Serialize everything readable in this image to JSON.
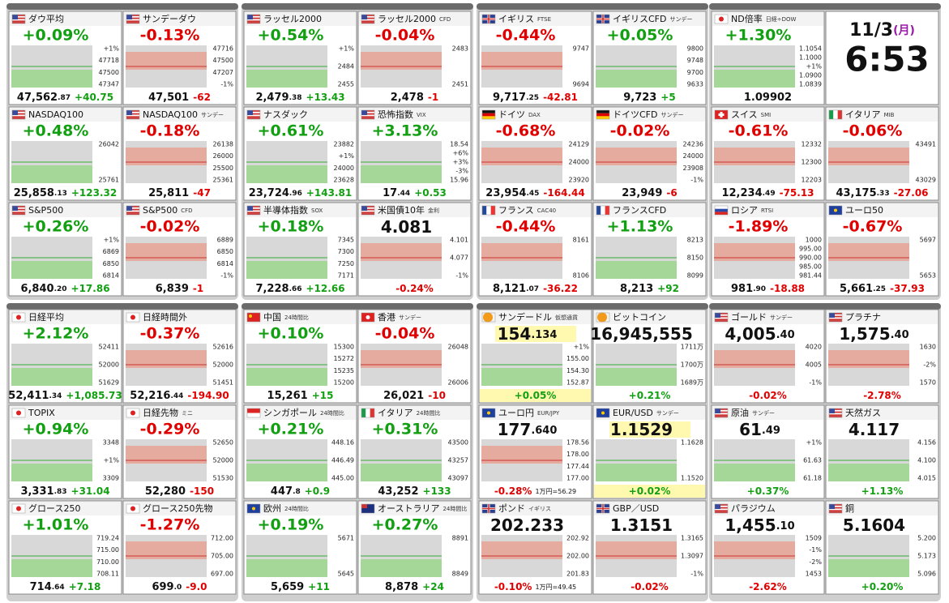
{
  "clock": {
    "date": "11/3",
    "weekday": "(月)",
    "time": "6:53"
  },
  "tiles": [
    {
      "name": "ダウ平均",
      "change": "+0.09%",
      "price": "47,562",
      "price_dec": ".87",
      "delta": "+40.75",
      "axis": [
        "+1%",
        "47718",
        "47500",
        "47347"
      ]
    },
    {
      "name": "サンデーダウ",
      "change": "-0.13%",
      "price": "47,501",
      "delta": "-62",
      "axis": [
        "47716",
        "47500",
        "47207",
        "-1%"
      ]
    },
    {
      "name": "NASDAQ100",
      "change": "+0.48%",
      "price": "25,858",
      "price_dec": ".13",
      "delta": "+123.32",
      "axis": [
        "26042",
        "25761"
      ]
    },
    {
      "name": "NASDAQ100",
      "tag": "サンデー",
      "change": "-0.18%",
      "price": "25,811",
      "delta": "-47",
      "axis": [
        "26138",
        "26000",
        "25500",
        "25361"
      ]
    },
    {
      "name": "S&P500",
      "change": "+0.26%",
      "price": "6,840",
      "price_dec": ".20",
      "delta": "+17.86",
      "axis": [
        "+1%",
        "6869",
        "6850",
        "6814"
      ]
    },
    {
      "name": "S&P500",
      "tag": "CFD",
      "change": "-0.02%",
      "price": "6,839",
      "delta": "-1",
      "axis": [
        "6889",
        "6850",
        "6814",
        "-1%"
      ]
    },
    {
      "name": "ラッセル2000",
      "change": "+0.54%",
      "price": "2,479",
      "price_dec": ".38",
      "delta": "+13.43",
      "axis": [
        "+1%",
        "2484",
        "2455"
      ]
    },
    {
      "name": "ラッセル2000",
      "tag": "CFD",
      "change": "-0.04%",
      "price": "2,478",
      "delta": "-1",
      "axis": [
        "2483",
        "2451"
      ]
    },
    {
      "name": "ナスダック",
      "change": "+0.61%",
      "price": "23,724",
      "price_dec": ".96",
      "delta": "+143.81",
      "axis": [
        "23882",
        "+1%",
        "24000",
        "23628"
      ]
    },
    {
      "name": "恐怖指数",
      "tag": "VIX",
      "change": "+3.13%",
      "price": "17",
      "price_dec": ".44",
      "delta": "+0.53",
      "axis": [
        "18.54",
        "+6%",
        "+3%",
        "-3%",
        "15.96"
      ]
    },
    {
      "name": "半導体指数",
      "tag": "SOX",
      "change": "+0.18%",
      "price": "7,228",
      "price_dec": ".66",
      "delta": "+12.66",
      "axis": [
        "7345",
        "7300",
        "7250",
        "7171"
      ]
    },
    {
      "name": "米国債10年",
      "tag": "金利",
      "price": "4.081",
      "change": "-0.24%",
      "axis": [
        "4.101",
        "4.077",
        "-1%"
      ]
    },
    {
      "name": "イギリス",
      "tag": "FTSE",
      "change": "-0.44%",
      "price": "9,717",
      "price_dec": ".25",
      "delta": "-42.81",
      "axis": [
        "9747",
        "9694"
      ]
    },
    {
      "name": "イギリスCFD",
      "tag": "サンデー",
      "change": "+0.05%",
      "price": "9,723",
      "delta": "+5",
      "axis": [
        "9800",
        "9748",
        "9700",
        "9633"
      ]
    },
    {
      "name": "ドイツ",
      "tag": "DAX",
      "change": "-0.68%",
      "price": "23,954",
      "price_dec": ".45",
      "delta": "-164.44",
      "axis": [
        "24129",
        "24000",
        "23920"
      ]
    },
    {
      "name": "ドイツCFD",
      "tag": "サンデー",
      "change": "-0.02%",
      "price": "23,949",
      "delta": "-6",
      "axis": [
        "24236",
        "24000",
        "23908",
        "-1%"
      ]
    },
    {
      "name": "フランス",
      "tag": "CAC40",
      "change": "-0.44%",
      "price": "8,121",
      "price_dec": ".07",
      "delta": "-36.22",
      "axis": [
        "8161",
        "8106"
      ]
    },
    {
      "name": "フランスCFD",
      "change": "+1.13%",
      "price": "8,213",
      "delta": "+92",
      "axis": [
        "8213",
        "8150",
        "8099"
      ]
    },
    {
      "name": "ND倍率",
      "tag": "日経÷DOW",
      "change": "+1.30%",
      "price": "1.09902",
      "axis": [
        "1.1054",
        "1.1000",
        "+1%",
        "1.0900",
        "1.0839"
      ]
    },
    {
      "name": "スイス",
      "tag": "SMI",
      "change": "-0.61%",
      "price": "12,234",
      "price_dec": ".49",
      "delta": "-75.13",
      "axis": [
        "12332",
        "12300",
        "12203"
      ]
    },
    {
      "name": "イタリア",
      "tag": "MIB",
      "change": "-0.06%",
      "price": "43,175",
      "price_dec": ".33",
      "delta": "-27.06",
      "axis": [
        "43491",
        "43029"
      ]
    },
    {
      "name": "ロシア",
      "tag": "RTSI",
      "change": "-1.89%",
      "price": "981",
      "price_dec": ".90",
      "delta": "-18.88",
      "axis": [
        "1000",
        "995.00",
        "990.00",
        "985.00",
        "981.44"
      ]
    },
    {
      "name": "ユーロ50",
      "change": "-0.67%",
      "price": "5,661",
      "price_dec": ".25",
      "delta": "-37.93",
      "axis": [
        "5697",
        "5653"
      ]
    },
    {
      "name": "日経平均",
      "change": "+2.12%",
      "price": "52,411",
      "price_dec": ".34",
      "delta": "+1,085.73",
      "axis": [
        "52411",
        "52000",
        "51629"
      ]
    },
    {
      "name": "日経時間外",
      "change": "-0.37%",
      "price": "52,216",
      "price_dec": ".44",
      "delta": "-194.90",
      "axis": [
        "52616",
        "52000",
        "51451"
      ]
    },
    {
      "name": "TOPIX",
      "change": "+0.94%",
      "price": "3,331",
      "price_dec": ".83",
      "delta": "+31.04",
      "axis": [
        "3348",
        "+1%",
        "3309"
      ]
    },
    {
      "name": "日経先物",
      "tag": "ミニ",
      "change": "-0.29%",
      "price": "52,280",
      "delta": "-150",
      "axis": [
        "52650",
        "52000",
        "51530"
      ]
    },
    {
      "name": "グロース250",
      "change": "+1.01%",
      "price": "714",
      "price_dec": ".64",
      "delta": "+7.18",
      "axis": [
        "719.24",
        "715.00",
        "710.00",
        "708.11"
      ]
    },
    {
      "name": "グロース250先物",
      "change": "-1.27%",
      "price": "699",
      "price_dec": ".0",
      "delta": "-9.0",
      "axis": [
        "712.00",
        "705.00",
        "697.00"
      ]
    },
    {
      "name": "中国",
      "tag": "24時間比",
      "change": "+0.10%",
      "price": "15,261",
      "delta": "+15",
      "axis": [
        "15300",
        "15272",
        "15235",
        "15200"
      ]
    },
    {
      "name": "香港",
      "tag": "サンデー",
      "change": "-0.04%",
      "price": "26,021",
      "delta": "-10",
      "axis": [
        "26048",
        "26006"
      ]
    },
    {
      "name": "シンガポール",
      "tag": "24時間比",
      "change": "+0.21%",
      "price": "447",
      "price_dec": ".8",
      "delta": "+0.9",
      "axis": [
        "448.16",
        "446.49",
        "445.00"
      ]
    },
    {
      "name": "イタリア",
      "tag": "24時間比",
      "change": "+0.31%",
      "price": "43,252",
      "delta": "+133",
      "axis": [
        "43500",
        "43257",
        "43097"
      ]
    },
    {
      "name": "欧州",
      "tag": "24時間比",
      "change": "+0.19%",
      "price": "5,659",
      "delta": "+11",
      "axis": [
        "5671",
        "5645"
      ]
    },
    {
      "name": "オーストラリア",
      "tag": "24時間比",
      "change": "+0.27%",
      "price": "8,878",
      "delta": "+24",
      "axis": [
        "8891",
        "8849"
      ]
    },
    {
      "name": "サンデードル",
      "tag": "仮想通貨",
      "price": "154",
      "price_dec": ".134",
      "change": "+0.05%",
      "axis": [
        "+1%",
        "155.00",
        "154.30",
        "152.87"
      ]
    },
    {
      "name": "ビットコイン",
      "change": "+0.21%",
      "price": "16,945,555",
      "axis": [
        "1711万",
        "1700万",
        "1689万"
      ]
    },
    {
      "name": "ユーロ円",
      "tag": "EUR/JPY",
      "price": "177",
      "price_dec": ".640",
      "change": "-0.28%",
      "note": "1万円=56.29",
      "axis": [
        "178.56",
        "178.00",
        "177.44",
        "177.00"
      ]
    },
    {
      "name": "EUR/USD",
      "tag": "サンデー",
      "price": "1.1529",
      "change": "+0.02%",
      "axis": [
        "1.1628",
        "1.1520"
      ]
    },
    {
      "name": "ポンド",
      "tag": "イギリス",
      "price": "202.233",
      "change": "-0.10%",
      "note": "1万円=49.45",
      "axis": [
        "202.92",
        "202.00",
        "201.83"
      ]
    },
    {
      "name": "GBP／USD",
      "price": "1.3151",
      "change": "-0.02%",
      "axis": [
        "1.3165",
        "1.3097",
        "-1%"
      ]
    },
    {
      "name": "ゴールド",
      "tag": "サンデー",
      "price": "4,005",
      "price_dec": ".40",
      "change": "-0.02%",
      "axis": [
        "4020",
        "4005",
        "-1%"
      ]
    },
    {
      "name": "プラチナ",
      "price": "1,575",
      "price_dec": ".40",
      "change": "-2.78%",
      "axis": [
        "1630",
        "-2%",
        "1570"
      ]
    },
    {
      "name": "原油",
      "tag": "サンデー",
      "price": "61",
      "price_dec": ".49",
      "change": "+0.37%",
      "axis": [
        "+1%",
        "61.63",
        "61.18"
      ]
    },
    {
      "name": "天然ガス",
      "price": "4.117",
      "change": "+1.13%",
      "axis": [
        "4.156",
        "4.100",
        "4.015"
      ]
    },
    {
      "name": "パラジウム",
      "price": "1,455",
      "price_dec": ".10",
      "change": "-2.62%",
      "axis": [
        "1509",
        "-1%",
        "-2%",
        "1453"
      ]
    },
    {
      "name": "銅",
      "price": "5.1604",
      "change": "+0.20%",
      "axis": [
        "5.200",
        "5.173",
        "5.096"
      ]
    }
  ]
}
